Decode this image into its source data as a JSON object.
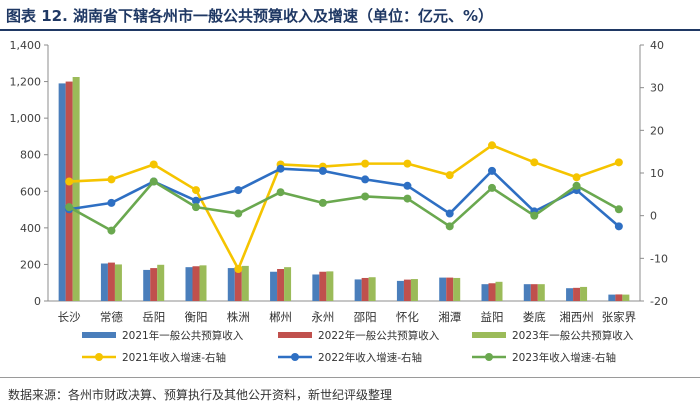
{
  "header": {
    "title": "图表 12.  湖南省下辖各州市一般公共预算收入及增速（单位：亿元、%）"
  },
  "footer": {
    "source": "数据来源：各州市财政决算、预算执行及其他公开资料，新世纪评级整理"
  },
  "colors": {
    "title": "#1f3864",
    "bar2021": "#4a7ebb",
    "bar2022": "#c0504d",
    "bar2023": "#9bbb59",
    "line2021": "#f5c400",
    "line2022": "#2e6fc3",
    "line2023": "#6aa84f"
  },
  "chart_data": {
    "type": "bar",
    "categories": [
      "长沙",
      "常德",
      "岳阳",
      "衡阳",
      "株洲",
      "郴州",
      "永州",
      "邵阳",
      "怀化",
      "湘潭",
      "益阳",
      "娄底",
      "湘西州",
      "张家界"
    ],
    "y_left": {
      "ticks": [
        "0",
        "200",
        "400",
        "600",
        "800",
        "1,000",
        "1,200",
        "1,400"
      ],
      "range": [
        0,
        1400
      ]
    },
    "y_right": {
      "ticks": [
        "40",
        "30",
        "20",
        "10",
        "0",
        "-10",
        "-20"
      ],
      "range": [
        -20,
        40
      ]
    },
    "bar_series": [
      {
        "name": "2021年一般公共预算收入",
        "values": [
          1190,
          205,
          170,
          185,
          180,
          160,
          145,
          118,
          110,
          128,
          92,
          92,
          70,
          35
        ]
      },
      {
        "name": "2022年一般公共预算收入",
        "values": [
          1200,
          210,
          180,
          190,
          185,
          175,
          160,
          126,
          117,
          128,
          97,
          92,
          72,
          36
        ]
      },
      {
        "name": "2023年一般公共预算收入",
        "values": [
          1225,
          200,
          198,
          195,
          192,
          185,
          162,
          130,
          120,
          126,
          105,
          92,
          77,
          35
        ]
      }
    ],
    "line_series": [
      {
        "name": "2021年收入增速-右轴",
        "values": [
          8,
          8.5,
          12,
          6,
          -12.5,
          12,
          11.5,
          12.2,
          12.2,
          9.5,
          16.5,
          12.5,
          9,
          12.5
        ]
      },
      {
        "name": "2022年收入增速-右轴",
        "values": [
          1.5,
          3,
          8,
          3.5,
          6,
          11,
          10.5,
          8.5,
          7,
          0.5,
          10.5,
          1,
          6,
          -2.5
        ]
      },
      {
        "name": "2023年收入增速-右轴",
        "values": [
          2,
          -3.5,
          8,
          2,
          0.5,
          5.5,
          3,
          4.5,
          4,
          -2.5,
          6.5,
          0,
          7,
          1.5
        ]
      }
    ],
    "legend_position": "bottom",
    "grid": false
  }
}
